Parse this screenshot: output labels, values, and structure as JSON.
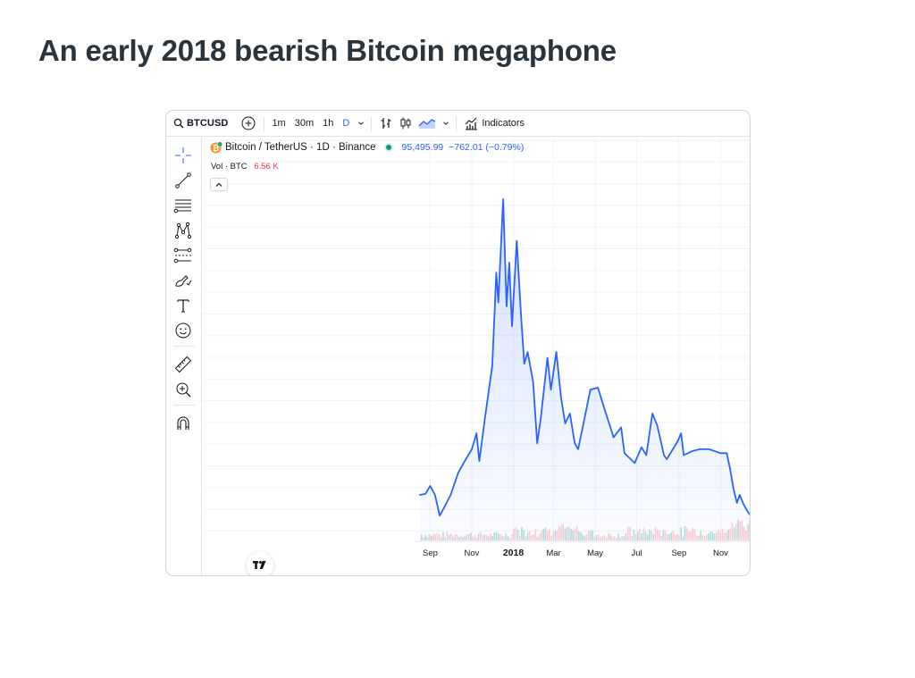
{
  "page": {
    "title": "An early 2018 bearish Bitcoin megaphone"
  },
  "toolbar": {
    "symbol": "BTCUSD",
    "intervals": [
      "1m",
      "30m",
      "1h",
      "D"
    ],
    "indicators_label": "Indicators",
    "icons": [
      "search-icon",
      "add-symbol-icon",
      "chevron-down-icon",
      "bar-style-icon",
      "candle-style-icon",
      "area-style-icon",
      "indicators-icon"
    ]
  },
  "drawing_tools": [
    "crosshair-icon",
    "trend-line-icon",
    "horizontal-lines-icon",
    "pattern-icon",
    "projection-icon",
    "brush-icon",
    "text-icon",
    "emoji-icon",
    "ruler-icon",
    "zoom-in-icon",
    "magnet-icon"
  ],
  "legend": {
    "name": "Bitcoin / TetherUS · 1D · Binance",
    "price": "95,495.99",
    "change": "−762.01 (−0.79%)",
    "vol_label": "Vol · BTC",
    "vol_value": "6.56 K"
  },
  "colors": {
    "line": "#2962ff",
    "volume_up": "#b2dfdb",
    "volume_down": "#ffcdd2",
    "vol_value": "#f23645",
    "market_open_dot": "#089981"
  },
  "chart_data": {
    "type": "area",
    "title": "",
    "xlabel": "",
    "ylabel": "",
    "x_ticks": [
      {
        "label": "Sep",
        "x": "2017-09-01"
      },
      {
        "label": "Nov",
        "x": "2017-11-01"
      },
      {
        "label": "2018",
        "x": "2018-01-01",
        "bold": true
      },
      {
        "label": "Mar",
        "x": "2018-03-01"
      },
      {
        "label": "May",
        "x": "2018-05-01"
      },
      {
        "label": "Jul",
        "x": "2018-07-01"
      },
      {
        "label": "Sep",
        "x": "2018-09-01"
      },
      {
        "label": "Nov",
        "x": "2018-11-01"
      }
    ],
    "xlim": [
      "2017-08-17",
      "2018-12-15"
    ],
    "ylim": [
      2500,
      20500
    ],
    "grid": true,
    "legend": "none",
    "series": [
      {
        "values": [
          {
            "x": "2017-08-17",
            "y": 4300
          },
          {
            "x": "2017-08-25",
            "y": 4350
          },
          {
            "x": "2017-09-01",
            "y": 4750
          },
          {
            "x": "2017-09-08",
            "y": 4300
          },
          {
            "x": "2017-09-15",
            "y": 3250
          },
          {
            "x": "2017-09-22",
            "y": 3700
          },
          {
            "x": "2017-10-01",
            "y": 4300
          },
          {
            "x": "2017-10-12",
            "y": 5400
          },
          {
            "x": "2017-10-20",
            "y": 5900
          },
          {
            "x": "2017-11-01",
            "y": 6600
          },
          {
            "x": "2017-11-08",
            "y": 7400
          },
          {
            "x": "2017-11-12",
            "y": 6000
          },
          {
            "x": "2017-11-20",
            "y": 8100
          },
          {
            "x": "2017-12-01",
            "y": 10800
          },
          {
            "x": "2017-12-07",
            "y": 15500
          },
          {
            "x": "2017-12-10",
            "y": 14000
          },
          {
            "x": "2017-12-17",
            "y": 19200
          },
          {
            "x": "2017-12-22",
            "y": 13800
          },
          {
            "x": "2017-12-26",
            "y": 16000
          },
          {
            "x": "2017-12-30",
            "y": 12800
          },
          {
            "x": "2018-01-06",
            "y": 17100
          },
          {
            "x": "2018-01-12",
            "y": 13500
          },
          {
            "x": "2018-01-17",
            "y": 10900
          },
          {
            "x": "2018-01-22",
            "y": 11500
          },
          {
            "x": "2018-01-30",
            "y": 10000
          },
          {
            "x": "2018-02-05",
            "y": 6900
          },
          {
            "x": "2018-02-10",
            "y": 8100
          },
          {
            "x": "2018-02-20",
            "y": 11200
          },
          {
            "x": "2018-02-25",
            "y": 9600
          },
          {
            "x": "2018-03-05",
            "y": 11500
          },
          {
            "x": "2018-03-12",
            "y": 9200
          },
          {
            "x": "2018-03-18",
            "y": 7900
          },
          {
            "x": "2018-03-25",
            "y": 8400
          },
          {
            "x": "2018-04-01",
            "y": 6900
          },
          {
            "x": "2018-04-06",
            "y": 6600
          },
          {
            "x": "2018-04-15",
            "y": 8100
          },
          {
            "x": "2018-04-24",
            "y": 9600
          },
          {
            "x": "2018-05-05",
            "y": 9700
          },
          {
            "x": "2018-05-15",
            "y": 8600
          },
          {
            "x": "2018-05-28",
            "y": 7200
          },
          {
            "x": "2018-06-08",
            "y": 7700
          },
          {
            "x": "2018-06-13",
            "y": 6400
          },
          {
            "x": "2018-06-28",
            "y": 5900
          },
          {
            "x": "2018-07-08",
            "y": 6700
          },
          {
            "x": "2018-07-15",
            "y": 6300
          },
          {
            "x": "2018-07-24",
            "y": 8400
          },
          {
            "x": "2018-07-31",
            "y": 7800
          },
          {
            "x": "2018-08-10",
            "y": 6300
          },
          {
            "x": "2018-08-14",
            "y": 6100
          },
          {
            "x": "2018-08-30",
            "y": 7000
          },
          {
            "x": "2018-09-04",
            "y": 7400
          },
          {
            "x": "2018-09-08",
            "y": 6300
          },
          {
            "x": "2018-09-20",
            "y": 6500
          },
          {
            "x": "2018-10-01",
            "y": 6600
          },
          {
            "x": "2018-10-15",
            "y": 6600
          },
          {
            "x": "2018-11-01",
            "y": 6400
          },
          {
            "x": "2018-11-10",
            "y": 6400
          },
          {
            "x": "2018-11-15",
            "y": 5600
          },
          {
            "x": "2018-11-20",
            "y": 4600
          },
          {
            "x": "2018-11-25",
            "y": 3900
          },
          {
            "x": "2018-11-29",
            "y": 4300
          },
          {
            "x": "2018-12-05",
            "y": 3800
          },
          {
            "x": "2018-12-10",
            "y": 3500
          },
          {
            "x": "2018-12-15",
            "y": 3250
          }
        ]
      }
    ]
  }
}
